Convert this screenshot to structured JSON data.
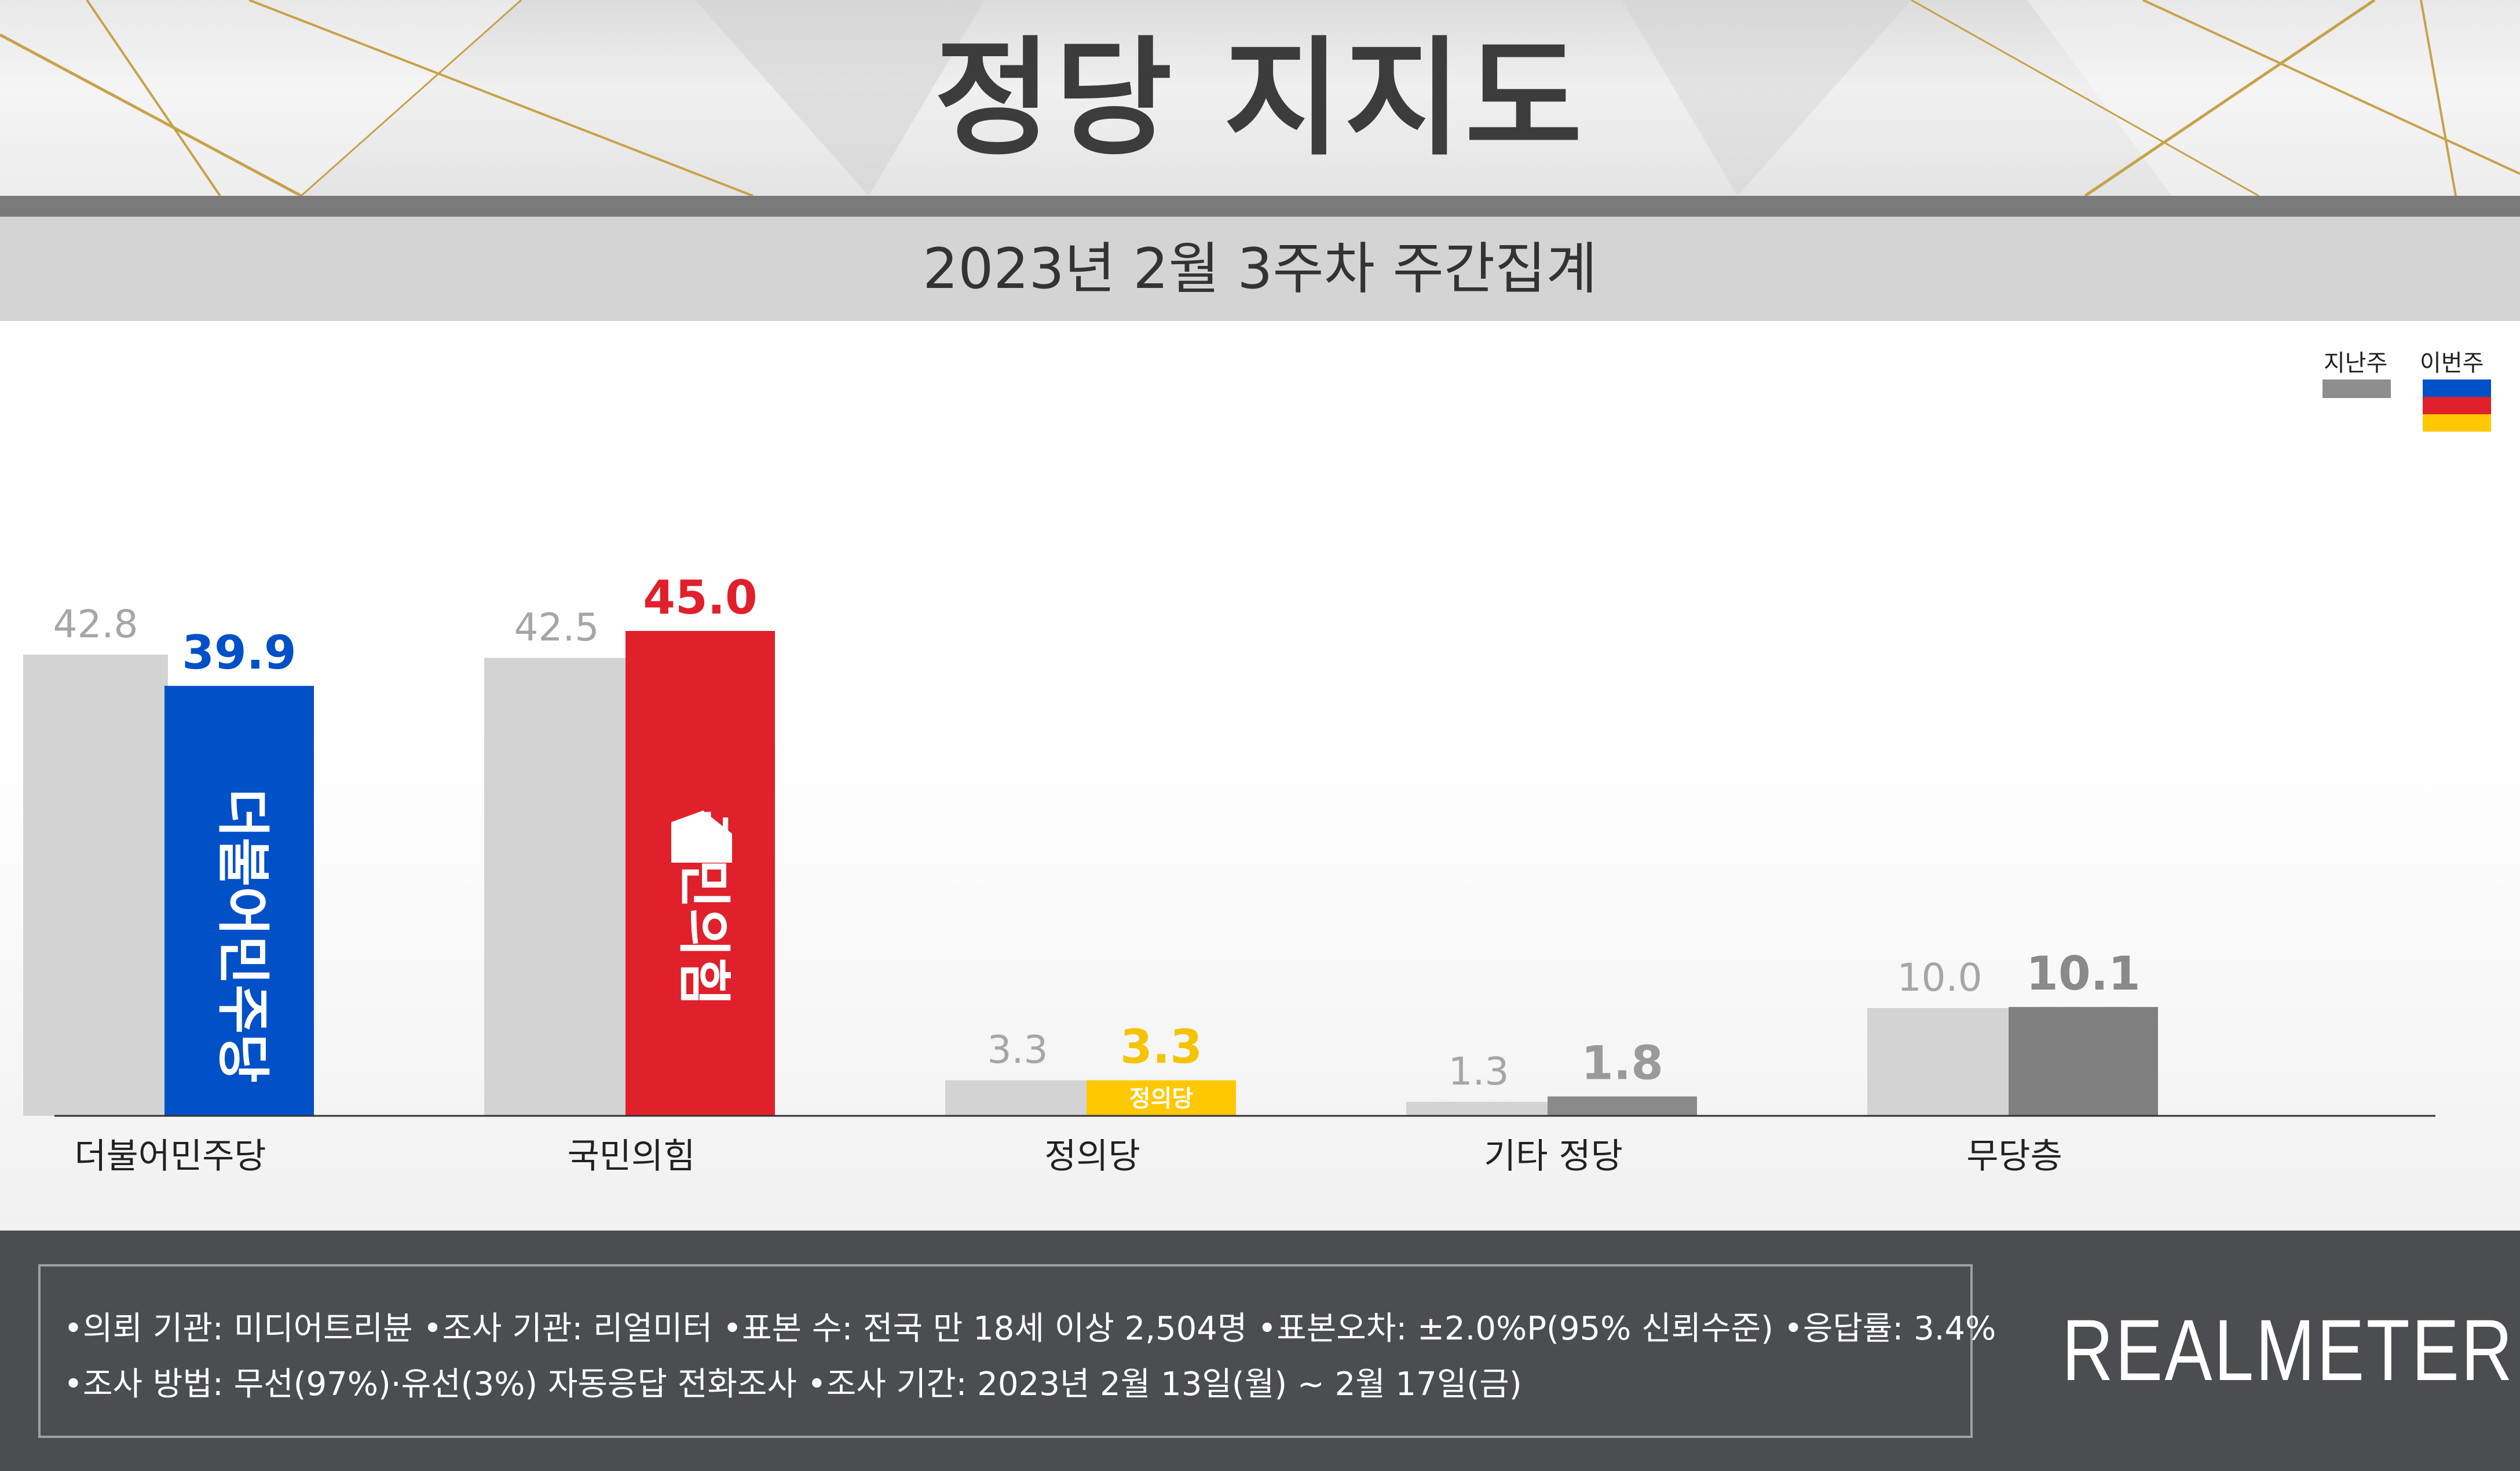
{
  "header": {
    "title": "정당 지지도",
    "subtitle": "2023년 2월 3주차 주간집계"
  },
  "legend": [
    {
      "label": "지난주",
      "colors": [
        "#8e8e8e"
      ]
    },
    {
      "label": "이번주",
      "colors": [
        "#0050c8",
        "#e0202a",
        "#ffc800"
      ]
    }
  ],
  "chart_data": {
    "type": "bar",
    "categories": [
      "더불어민주당",
      "국민의힘",
      "정의당",
      "기타 정당",
      "무당층"
    ],
    "series": [
      {
        "name": "지난주",
        "values": [
          42.8,
          42.5,
          3.3,
          1.3,
          10.0
        ],
        "colors": [
          "#d3d3d3",
          "#d3d3d3",
          "#d3d3d3",
          "#d3d3d3",
          "#d3d3d3"
        ]
      },
      {
        "name": "이번주",
        "values": [
          39.9,
          45.0,
          3.3,
          1.8,
          10.1
        ],
        "colors": [
          "#0050c8",
          "#e0202a",
          "#ffc800",
          "#8a8a8a",
          "#808080"
        ]
      }
    ],
    "value_label_colors": {
      "previous": "#a6a6a6",
      "current": [
        "#0050c8",
        "#e0202a",
        "#f5c400",
        "#9a9a9a",
        "#8a8a8a"
      ]
    },
    "bar_logos": [
      "더불어민주당",
      "국민의힘",
      "정의당",
      "",
      ""
    ],
    "ylim": [
      0,
      45.0
    ],
    "grid": false
  },
  "footer": {
    "line1": "•의뢰 기관: 미디어트리뷴  •조사 기관: 리얼미터 •표본 수: 전국 만 18세 이상 2,504명 •표본오차: ±2.0%P(95% 신뢰수준) •응답률: 3.4%",
    "line2": "•조사 방법: 무선(97%)·유선(3%) 자동응답 전화조사 •조사 기간: 2023년 2월 13일(월) ~ 2월 17일(금)",
    "brand": "REALMETER"
  }
}
